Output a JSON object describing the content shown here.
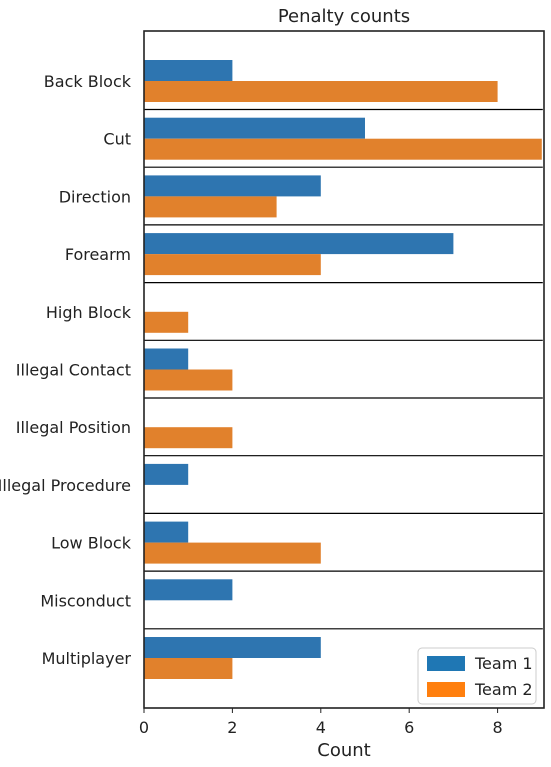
{
  "chart_data": {
    "type": "bar",
    "orientation": "horizontal",
    "title": "Penalty counts",
    "xlabel": "Count",
    "ylabel": "",
    "xlim": [
      0,
      9.05
    ],
    "xticks": [
      0,
      2,
      4,
      6,
      8
    ],
    "categories": [
      "Back Block",
      "Cut",
      "Direction",
      "Forearm",
      "High Block",
      "Illegal Contact",
      "Illegal Position",
      "Illegal Procedure",
      "Low Block",
      "Misconduct",
      "Multiplayer"
    ],
    "series": [
      {
        "name": "Team 1",
        "color": "#2e75b0",
        "legend_color": "#1f77b4",
        "values": [
          2,
          5,
          4,
          7,
          0,
          1,
          0,
          1,
          1,
          2,
          4
        ]
      },
      {
        "name": "Team 2",
        "color": "#e1812c",
        "legend_color": "#ff7f0e",
        "values": [
          8,
          9,
          3,
          4,
          1,
          2,
          2,
          0,
          4,
          0,
          2
        ]
      }
    ],
    "group_separators": true,
    "legend_position": "lower-right",
    "grid": false
  }
}
